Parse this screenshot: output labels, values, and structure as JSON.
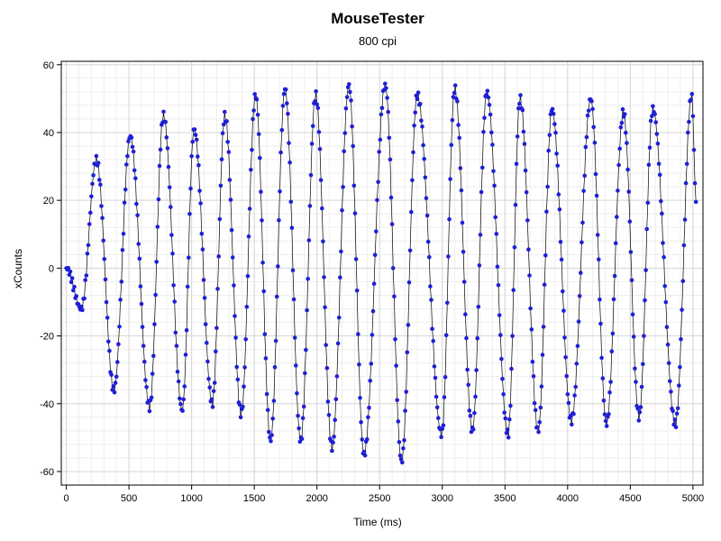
{
  "chart_data": {
    "type": "scatter",
    "title": "MouseTester",
    "subtitle": "800 cpi",
    "xlabel": "Time (ms)",
    "ylabel": "xCounts",
    "xlim": [
      -40,
      5080
    ],
    "ylim": [
      -64,
      61
    ],
    "x_ticks": [
      0,
      500,
      1000,
      1500,
      2000,
      2500,
      3000,
      3500,
      4000,
      4500,
      5000
    ],
    "y_ticks": [
      -60,
      -40,
      -20,
      0,
      20,
      40,
      60
    ],
    "x_minor_step": 100,
    "y_minor_step": 4,
    "grid": true,
    "legend": "none",
    "colors": {
      "points": "#1f1fd6",
      "line": "#000000",
      "grid_major": "#d6d6d6",
      "grid_minor": "#eeeeee"
    },
    "series": [
      {
        "style": "points-with-line",
        "sample_interval_ms": 8,
        "x_start": 0,
        "cycles": [
          {
            "t_start": 0,
            "t_peak": 240,
            "peak": 32,
            "t_trough": 380,
            "trough": -36
          },
          {
            "t_peak": 510,
            "peak": 39,
            "t_trough": 665,
            "trough": -41
          },
          {
            "t_peak": 775,
            "peak": 45,
            "t_trough": 925,
            "trough": -42
          },
          {
            "t_peak": 1020,
            "peak": 41,
            "t_trough": 1165,
            "trough": -40
          },
          {
            "t_peak": 1265,
            "peak": 45,
            "t_trough": 1395,
            "trough": -43
          },
          {
            "t_peak": 1510,
            "peak": 51,
            "t_trough": 1630,
            "trough": -51
          },
          {
            "t_peak": 1745,
            "peak": 53,
            "t_trough": 1870,
            "trough": -51
          },
          {
            "t_peak": 1990,
            "peak": 51,
            "t_trough": 2120,
            "trough": -53
          },
          {
            "t_peak": 2255,
            "peak": 54,
            "t_trough": 2375,
            "trough": -55
          },
          {
            "t_peak": 2545,
            "peak": 54,
            "t_trough": 2675,
            "trough": -57
          },
          {
            "t_peak": 2800,
            "peak": 51,
            "t_trough": 2995,
            "trough": -49
          },
          {
            "t_peak": 3100,
            "peak": 53,
            "t_trough": 3240,
            "trough": -48
          },
          {
            "t_peak": 3355,
            "peak": 52,
            "t_trough": 3525,
            "trough": -49
          },
          {
            "t_peak": 3620,
            "peak": 50,
            "t_trough": 3765,
            "trough": -48
          },
          {
            "t_peak": 3875,
            "peak": 47,
            "t_trough": 4030,
            "trough": -45
          },
          {
            "t_peak": 4185,
            "peak": 50,
            "t_trough": 4310,
            "trough": -46
          },
          {
            "t_peak": 4445,
            "peak": 46,
            "t_trough": 4570,
            "trough": -44
          },
          {
            "t_peak": 4680,
            "peak": 47,
            "t_trough": 4860,
            "trough": -46
          },
          {
            "t_peak": 4990,
            "peak": 51,
            "t_end": 5025,
            "end": 20
          }
        ]
      }
    ]
  }
}
